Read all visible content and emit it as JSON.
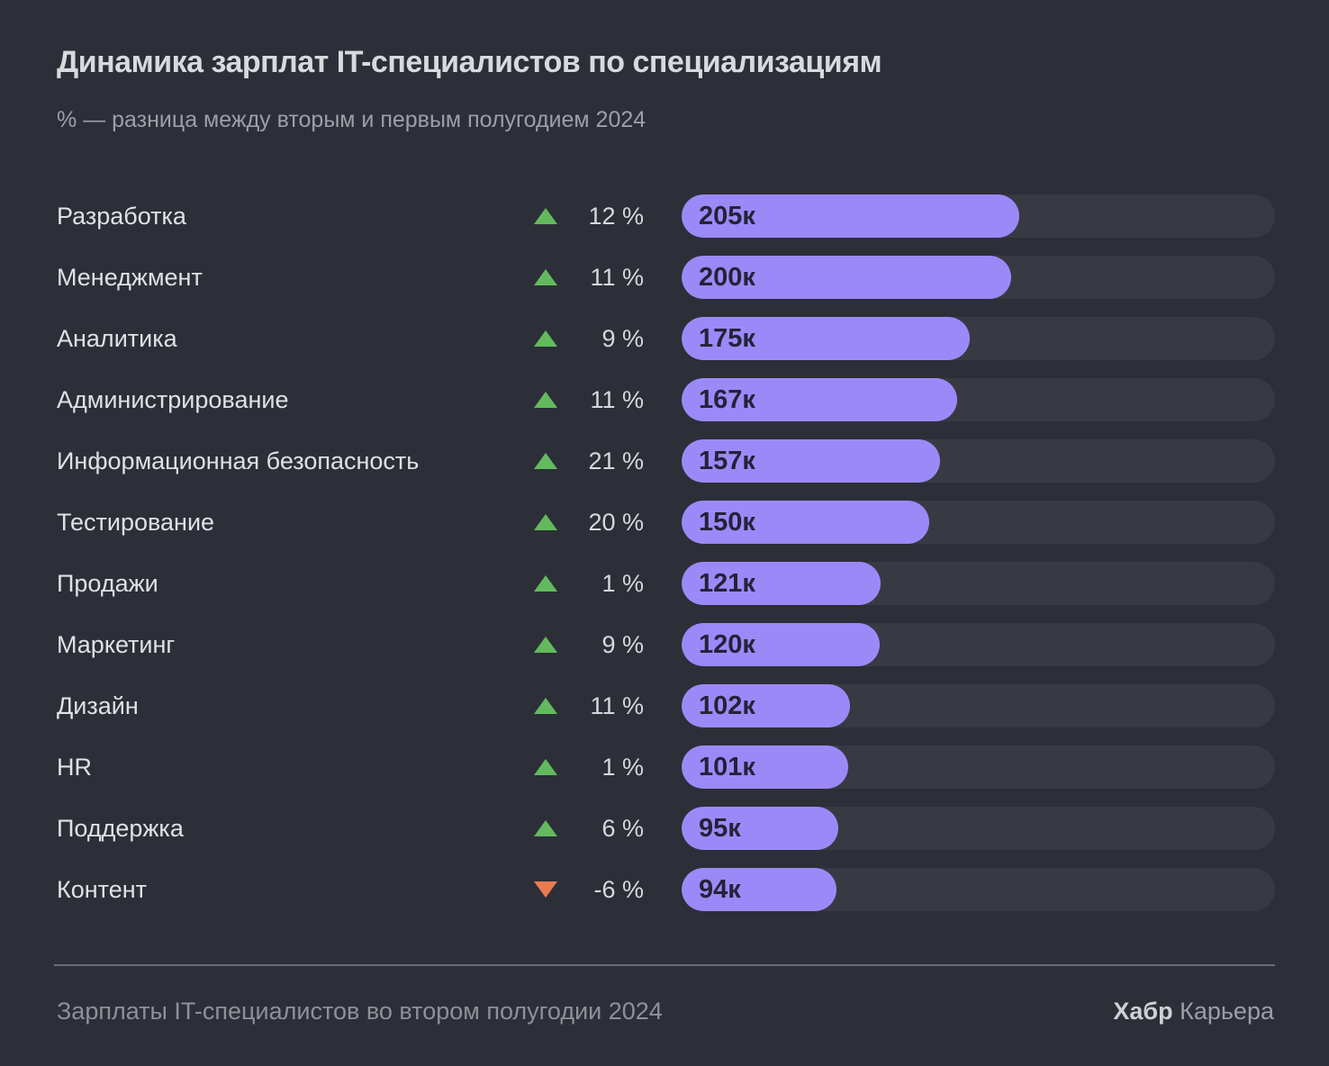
{
  "header": {
    "title": "Динамика зарплат IT-специалистов по специализациям",
    "subtitle": "% — разница между вторым и первым полугодием 2024"
  },
  "footer": {
    "source": "Зарплаты IT-специалистов во втором полугодии 2024",
    "brand": {
      "bold": "Хабр",
      "regular": "Карьера"
    }
  },
  "colors": {
    "background": "#2c2f38",
    "bar_fill": "#9c89f8",
    "bar_track": "#373a43",
    "bar_label": "#232338",
    "trend_up": "#63ba5e",
    "trend_down": "#ea7a50",
    "title_text": "#d8dadd",
    "subtitle_text": "#9ba0a7",
    "row_label_text": "#dfe1e4",
    "percent_text": "#d6d8db",
    "footer_text": "#8d9198",
    "divider": "#696c71",
    "brand_bold": "#ced0d4",
    "brand_regular": "#9b9fa6"
  },
  "chart_data": {
    "type": "bar",
    "orientation": "horizontal",
    "title": "Динамика зарплат IT-специалистов по специализациям",
    "subtitle": "% — разница между вторым и первым полугодием 2024",
    "value_suffix": "к",
    "scale_max": 360,
    "legend": "none",
    "grid": false,
    "categories": [
      "Разработка",
      "Менеджмент",
      "Аналитика",
      "Администрирование",
      "Информационная безопасность",
      "Тестирование",
      "Продажи",
      "Маркетинг",
      "Дизайн",
      "HR",
      "Поддержка",
      "Контент"
    ],
    "values": [
      205,
      200,
      175,
      167,
      157,
      150,
      121,
      120,
      102,
      101,
      95,
      94
    ],
    "changes_pct": [
      12,
      11,
      9,
      11,
      21,
      20,
      1,
      9,
      11,
      1,
      6,
      -6
    ],
    "rows": [
      {
        "label": "Разработка",
        "change_pct": 12,
        "trend": "up",
        "change_label": "12 %",
        "value": 205,
        "value_label": "205к"
      },
      {
        "label": "Менеджмент",
        "change_pct": 11,
        "trend": "up",
        "change_label": "11 %",
        "value": 200,
        "value_label": "200к"
      },
      {
        "label": "Аналитика",
        "change_pct": 9,
        "trend": "up",
        "change_label": "9 %",
        "value": 175,
        "value_label": "175к"
      },
      {
        "label": "Администрирование",
        "change_pct": 11,
        "trend": "up",
        "change_label": "11 %",
        "value": 167,
        "value_label": "167к"
      },
      {
        "label": "Информационная безопасность",
        "change_pct": 21,
        "trend": "up",
        "change_label": "21 %",
        "value": 157,
        "value_label": "157к"
      },
      {
        "label": "Тестирование",
        "change_pct": 20,
        "trend": "up",
        "change_label": "20 %",
        "value": 150,
        "value_label": "150к"
      },
      {
        "label": "Продажи",
        "change_pct": 1,
        "trend": "up",
        "change_label": "1 %",
        "value": 121,
        "value_label": "121к"
      },
      {
        "label": "Маркетинг",
        "change_pct": 9,
        "trend": "up",
        "change_label": "9 %",
        "value": 120,
        "value_label": "120к"
      },
      {
        "label": "Дизайн",
        "change_pct": 11,
        "trend": "up",
        "change_label": "11 %",
        "value": 102,
        "value_label": "102к"
      },
      {
        "label": "HR",
        "change_pct": 1,
        "trend": "up",
        "change_label": "1 %",
        "value": 101,
        "value_label": "101к"
      },
      {
        "label": "Поддержка",
        "change_pct": 6,
        "trend": "up",
        "change_label": "6 %",
        "value": 95,
        "value_label": "95к"
      },
      {
        "label": "Контент",
        "change_pct": -6,
        "trend": "down",
        "change_label": "-6 %",
        "value": 94,
        "value_label": "94к"
      }
    ]
  }
}
